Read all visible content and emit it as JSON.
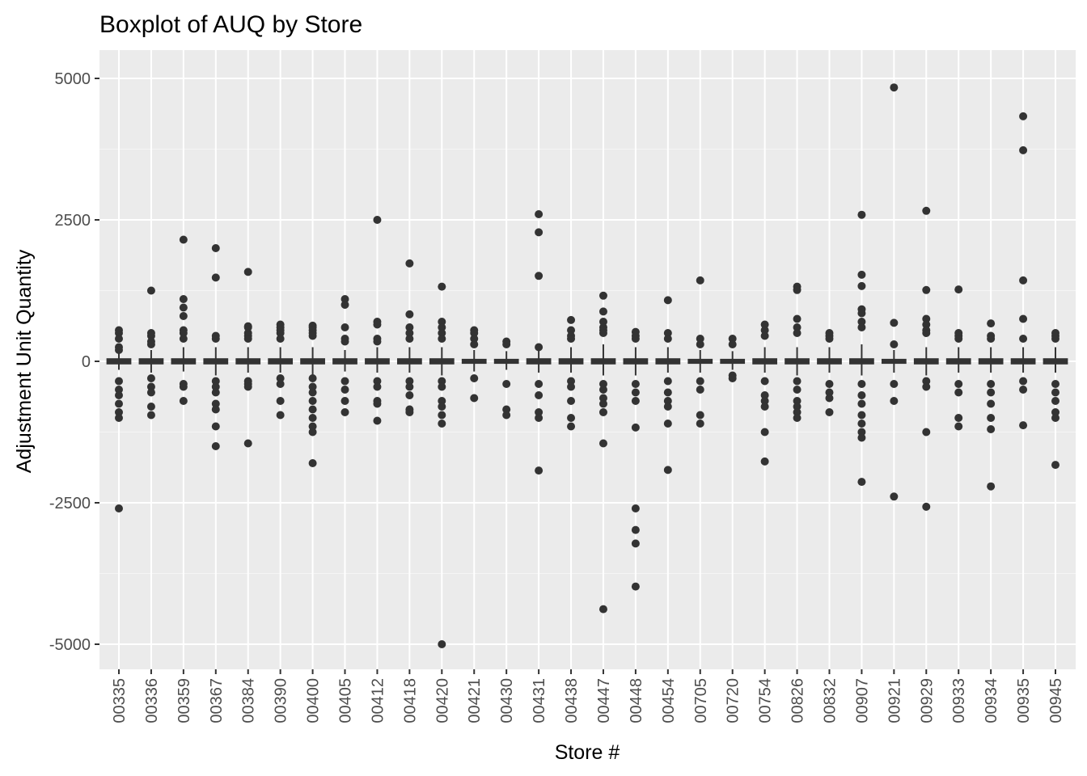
{
  "chart_data": {
    "type": "box",
    "title": "Boxplot of AUQ by Store",
    "xlabel": "Store #",
    "ylabel": "Adjustment Unit Quantity",
    "ylim": [
      -5500,
      5500
    ],
    "yticks": [
      -5000,
      -2500,
      0,
      2500,
      5000
    ],
    "grid": true,
    "legend": "none",
    "colors": {
      "panel": "#ebebeb",
      "grid_major": "#ffffff",
      "grid_minor": "#f5f5f5",
      "marks": "#333333",
      "tick_text": "#4d4d4d"
    },
    "categories": [
      "00335",
      "00336",
      "00359",
      "00367",
      "00384",
      "00390",
      "00400",
      "00405",
      "00412",
      "00418",
      "00420",
      "00421",
      "00430",
      "00431",
      "00438",
      "00447",
      "00448",
      "00454",
      "00705",
      "00720",
      "00754",
      "00826",
      "00832",
      "00907",
      "00921",
      "00929",
      "00933",
      "00934",
      "00935",
      "00945"
    ],
    "boxes": [
      {
        "store": "00335",
        "q1": -40,
        "median": 0,
        "q3": 40,
        "whisker_low": -150,
        "whisker_high": 180,
        "outliers": [
          550,
          500,
          400,
          250,
          200,
          -350,
          -500,
          -600,
          -750,
          -900,
          -1000,
          -2600
        ]
      },
      {
        "store": "00336",
        "q1": -40,
        "median": 0,
        "q3": 40,
        "whisker_low": -200,
        "whisker_high": 200,
        "outliers": [
          1250,
          500,
          450,
          350,
          300,
          -300,
          -450,
          -550,
          -800,
          -950
        ]
      },
      {
        "store": "00359",
        "q1": -40,
        "median": 0,
        "q3": 40,
        "whisker_low": -180,
        "whisker_high": 250,
        "outliers": [
          2150,
          1100,
          950,
          800,
          550,
          500,
          400,
          -400,
          -450,
          -700
        ]
      },
      {
        "store": "00367",
        "q1": -40,
        "median": 0,
        "q3": 40,
        "whisker_low": -250,
        "whisker_high": 250,
        "outliers": [
          2000,
          1480,
          450,
          400,
          -350,
          -450,
          -550,
          -750,
          -850,
          -1150,
          -1500
        ]
      },
      {
        "store": "00384",
        "q1": -40,
        "median": 0,
        "q3": 40,
        "whisker_low": -200,
        "whisker_high": 250,
        "outliers": [
          1580,
          620,
          600,
          500,
          450,
          400,
          -350,
          -400,
          -450,
          -1450
        ]
      },
      {
        "store": "00390",
        "q1": -40,
        "median": 0,
        "q3": 40,
        "whisker_low": -200,
        "whisker_high": 250,
        "outliers": [
          650,
          600,
          550,
          500,
          400,
          -300,
          -400,
          -700,
          -950
        ]
      },
      {
        "store": "00400",
        "q1": -40,
        "median": 0,
        "q3": 40,
        "whisker_low": -250,
        "whisker_high": 250,
        "outliers": [
          630,
          600,
          550,
          500,
          450,
          -300,
          -450,
          -550,
          -700,
          -850,
          -1000,
          -1150,
          -1250,
          -1800
        ]
      },
      {
        "store": "00405",
        "q1": -40,
        "median": 0,
        "q3": 40,
        "whisker_low": -180,
        "whisker_high": 200,
        "outliers": [
          1100,
          1000,
          600,
          400,
          350,
          -350,
          -500,
          -700,
          -900
        ]
      },
      {
        "store": "00412",
        "q1": -40,
        "median": 0,
        "q3": 40,
        "whisker_low": -200,
        "whisker_high": 250,
        "outliers": [
          2500,
          700,
          650,
          400,
          350,
          -350,
          -450,
          -700,
          -750,
          -1050
        ]
      },
      {
        "store": "00418",
        "q1": -40,
        "median": 0,
        "q3": 40,
        "whisker_low": -200,
        "whisker_high": 250,
        "outliers": [
          1730,
          830,
          600,
          500,
          400,
          -350,
          -450,
          -600,
          -850,
          -900
        ]
      },
      {
        "store": "00420",
        "q1": -40,
        "median": 0,
        "q3": 40,
        "whisker_low": -250,
        "whisker_high": 250,
        "outliers": [
          1320,
          700,
          600,
          500,
          400,
          -350,
          -450,
          -700,
          -800,
          -950,
          -1100,
          -5000
        ]
      },
      {
        "store": "00421",
        "q1": -30,
        "median": 0,
        "q3": 30,
        "whisker_low": -180,
        "whisker_high": 200,
        "outliers": [
          550,
          500,
          400,
          300,
          -300,
          -650
        ]
      },
      {
        "store": "00430",
        "q1": -30,
        "median": 0,
        "q3": 30,
        "whisker_low": -150,
        "whisker_high": 180,
        "outliers": [
          350,
          300,
          -400,
          -850,
          -950
        ]
      },
      {
        "store": "00431",
        "q1": -40,
        "median": 0,
        "q3": 40,
        "whisker_low": -200,
        "whisker_high": 200,
        "outliers": [
          2600,
          2280,
          1510,
          250,
          -400,
          -600,
          -900,
          -1000,
          -1930
        ]
      },
      {
        "store": "00438",
        "q1": -40,
        "median": 0,
        "q3": 40,
        "whisker_low": -200,
        "whisker_high": 250,
        "outliers": [
          730,
          550,
          450,
          400,
          -350,
          -450,
          -700,
          -1000,
          -1150
        ]
      },
      {
        "store": "00447",
        "q1": -40,
        "median": 0,
        "q3": 40,
        "whisker_low": -250,
        "whisker_high": 300,
        "outliers": [
          1160,
          880,
          700,
          600,
          550,
          500,
          -400,
          -500,
          -650,
          -750,
          -900,
          -1450,
          -4380
        ]
      },
      {
        "store": "00448",
        "q1": -40,
        "median": 0,
        "q3": 40,
        "whisker_low": -250,
        "whisker_high": 250,
        "outliers": [
          520,
          450,
          400,
          -400,
          -550,
          -700,
          -1170,
          -2600,
          -2980,
          -3220,
          -3980
        ]
      },
      {
        "store": "00454",
        "q1": -40,
        "median": 0,
        "q3": 40,
        "whisker_low": -200,
        "whisker_high": 250,
        "outliers": [
          1080,
          500,
          400,
          -350,
          -550,
          -700,
          -800,
          -1100,
          -1920
        ]
      },
      {
        "store": "00705",
        "q1": -30,
        "median": 0,
        "q3": 30,
        "whisker_low": -200,
        "whisker_high": 200,
        "outliers": [
          1430,
          400,
          300,
          -350,
          -500,
          -950,
          -1100
        ]
      },
      {
        "store": "00720",
        "q1": -30,
        "median": 0,
        "q3": 30,
        "whisker_low": -150,
        "whisker_high": 180,
        "outliers": [
          400,
          300,
          -250,
          -300
        ]
      },
      {
        "store": "00754",
        "q1": -40,
        "median": 0,
        "q3": 40,
        "whisker_low": -200,
        "whisker_high": 250,
        "outliers": [
          650,
          550,
          450,
          -350,
          -600,
          -700,
          -800,
          -1250,
          -1770
        ]
      },
      {
        "store": "00826",
        "q1": -40,
        "median": 0,
        "q3": 40,
        "whisker_low": -250,
        "whisker_high": 250,
        "outliers": [
          1320,
          1260,
          750,
          600,
          500,
          -350,
          -500,
          -700,
          -800,
          -900,
          -1000
        ]
      },
      {
        "store": "00832",
        "q1": -40,
        "median": 0,
        "q3": 40,
        "whisker_low": -200,
        "whisker_high": 250,
        "outliers": [
          500,
          450,
          400,
          -400,
          -550,
          -650,
          -900
        ]
      },
      {
        "store": "00907",
        "q1": -40,
        "median": 0,
        "q3": 40,
        "whisker_low": -250,
        "whisker_high": 300,
        "outliers": [
          2590,
          1530,
          1330,
          920,
          850,
          700,
          600,
          -400,
          -600,
          -750,
          -950,
          -1100,
          -1250,
          -1350,
          -2130
        ]
      },
      {
        "store": "00921",
        "q1": -30,
        "median": 0,
        "q3": 30,
        "whisker_low": -200,
        "whisker_high": 200,
        "outliers": [
          4840,
          680,
          300,
          -400,
          -700,
          -2390
        ]
      },
      {
        "store": "00929",
        "q1": -40,
        "median": 0,
        "q3": 40,
        "whisker_low": -250,
        "whisker_high": 250,
        "outliers": [
          2660,
          1260,
          750,
          650,
          550,
          500,
          -350,
          -450,
          -1250,
          -2570
        ]
      },
      {
        "store": "00933",
        "q1": -40,
        "median": 0,
        "q3": 40,
        "whisker_low": -200,
        "whisker_high": 250,
        "outliers": [
          1270,
          500,
          450,
          400,
          -400,
          -550,
          -1000,
          -1150
        ]
      },
      {
        "store": "00934",
        "q1": -40,
        "median": 0,
        "q3": 40,
        "whisker_low": -200,
        "whisker_high": 250,
        "outliers": [
          670,
          450,
          400,
          -400,
          -550,
          -750,
          -1000,
          -1200,
          -2210
        ]
      },
      {
        "store": "00935",
        "q1": -40,
        "median": 0,
        "q3": 40,
        "whisker_low": -200,
        "whisker_high": 250,
        "outliers": [
          4330,
          3730,
          1430,
          750,
          400,
          -350,
          -500,
          -1130
        ]
      },
      {
        "store": "00945",
        "q1": -40,
        "median": 0,
        "q3": 40,
        "whisker_low": -200,
        "whisker_high": 250,
        "outliers": [
          500,
          450,
          400,
          -400,
          -550,
          -700,
          -900,
          -1000,
          -1830
        ]
      }
    ]
  }
}
